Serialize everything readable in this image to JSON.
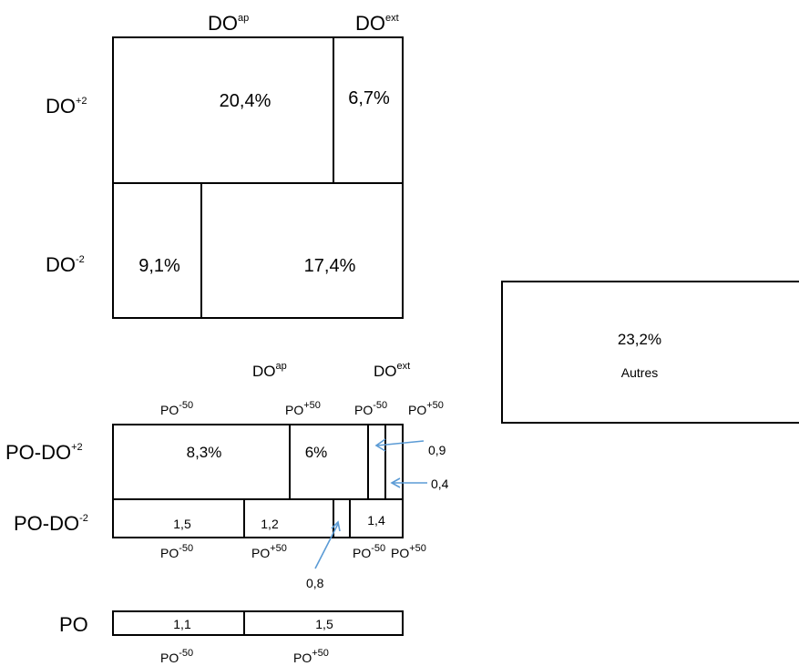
{
  "top": {
    "col_labels": [
      {
        "base": "DO",
        "sup": "ap"
      },
      {
        "base": "DO",
        "sup": "ext"
      }
    ],
    "row_labels": [
      {
        "base": "DO",
        "sup": "+2"
      },
      {
        "base": "DO",
        "sup": "-2"
      }
    ],
    "cells": {
      "do_plus2_ap": "20,4%",
      "do_plus2_ext": "6,7%",
      "do_minus2_a": "9,1%",
      "do_minus2_b": "17,4%"
    }
  },
  "other": {
    "value": "23,2%",
    "label": "Autres"
  },
  "middle": {
    "col_labels": [
      {
        "base": "DO",
        "sup": "ap"
      },
      {
        "base": "DO",
        "sup": "ext"
      }
    ],
    "po_top_labels": [
      {
        "base": "PO",
        "sup": "-50"
      },
      {
        "base": "PO",
        "sup": "+50"
      },
      {
        "base": "PO",
        "sup": "-50"
      },
      {
        "base": "PO",
        "sup": "+50"
      }
    ],
    "row_labels": [
      {
        "base": "PO-DO",
        "sup": "+2"
      },
      {
        "base": "PO-DO",
        "sup": "-2"
      }
    ],
    "cells": {
      "r1_a": "8,3%",
      "r1_b": "6%",
      "r2_a": "1,5",
      "r2_b": "1,2",
      "r2_d": "1,4"
    },
    "callouts": {
      "r1_c": "0,9",
      "r1_d": "0,4",
      "r2_c": "0,8"
    },
    "po_bottom_labels": [
      {
        "base": "PO",
        "sup": "-50"
      },
      {
        "base": "PO",
        "sup": "+50"
      },
      {
        "base": "PO",
        "sup": "-50"
      },
      {
        "base": "PO",
        "sup": "+50"
      }
    ]
  },
  "bottom": {
    "row_label": "PO",
    "cells": {
      "a": "1,1",
      "b": "1,5"
    },
    "po_labels": [
      {
        "base": "PO",
        "sup": "-50"
      },
      {
        "base": "PO",
        "sup": "+50"
      }
    ]
  }
}
